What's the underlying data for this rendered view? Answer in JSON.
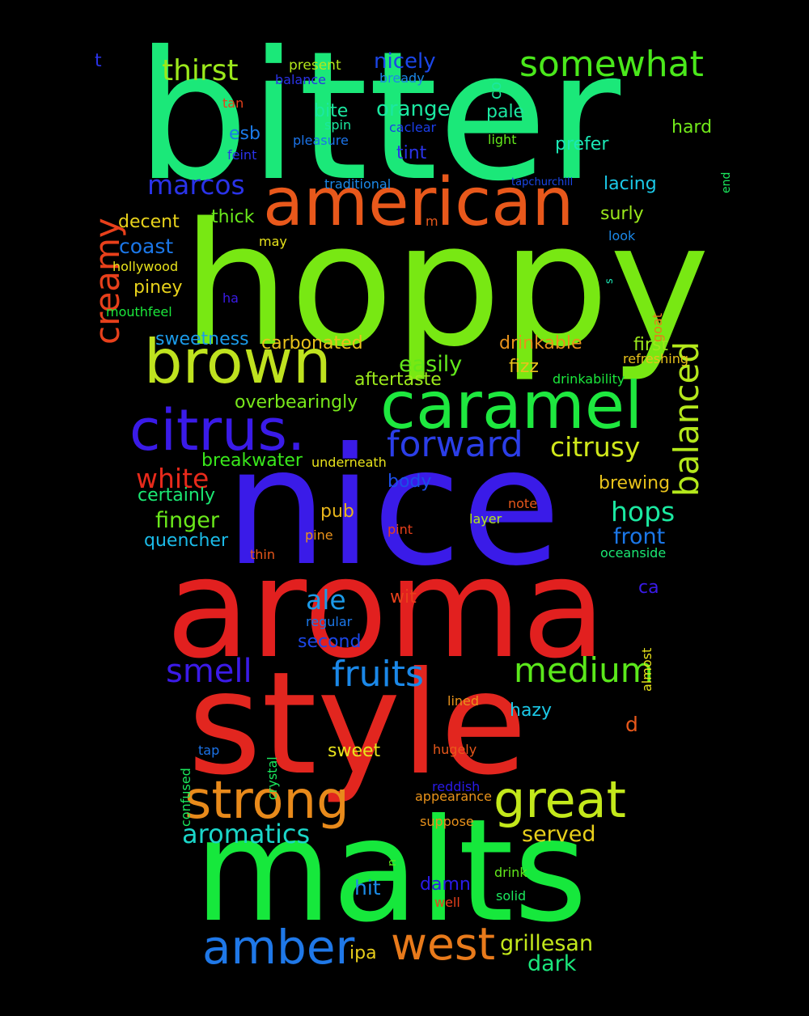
{
  "words": [
    {
      "text": "bitter",
      "color": "#1be879"
    },
    {
      "text": "hoppy",
      "color": "#78e813"
    },
    {
      "text": "nice",
      "color": "#3a1be8"
    },
    {
      "text": "aroma",
      "color": "#e2201f"
    },
    {
      "text": "style",
      "color": "#e2261f"
    },
    {
      "text": "malts",
      "color": "#16e83c"
    },
    {
      "text": "american",
      "color": "#e8581b"
    },
    {
      "text": "brown",
      "color": "#bfe21f"
    },
    {
      "text": "caramel",
      "color": "#1ee83f"
    },
    {
      "text": "citrus.",
      "color": "#3a1be8"
    },
    {
      "text": "forward",
      "color": "#2b3ee8"
    },
    {
      "text": "strong",
      "color": "#e88a1b"
    },
    {
      "text": "great",
      "color": "#c3e81b"
    },
    {
      "text": "amber",
      "color": "#1f78e8"
    },
    {
      "text": "west",
      "color": "#e87a1b"
    },
    {
      "text": "creamy",
      "color": "#e8401b"
    },
    {
      "text": "balanced",
      "color": "#b4e81b"
    },
    {
      "text": "somewhat",
      "color": "#4ae81b"
    },
    {
      "text": "thirst",
      "color": "#9be81b"
    },
    {
      "text": "marcos",
      "color": "#2a33e8"
    },
    {
      "text": "smell",
      "color": "#3b1be8"
    },
    {
      "text": "fruits",
      "color": "#1b88e8"
    },
    {
      "text": "medium",
      "color": "#5be81b"
    },
    {
      "text": "aromatics",
      "color": "#1bd6c9"
    },
    {
      "text": "citrusy",
      "color": "#d0e81b"
    },
    {
      "text": "white",
      "color": "#e82a1b"
    },
    {
      "text": "hops",
      "color": "#1be8a1"
    },
    {
      "text": "ale",
      "color": "#1b9ae8"
    },
    {
      "text": "front",
      "color": "#1b77e8"
    },
    {
      "text": "finger",
      "color": "#6ae81b"
    },
    {
      "text": "served",
      "color": "#e8cf1b"
    },
    {
      "text": "grillesan",
      "color": "#c3e81b"
    },
    {
      "text": "dark",
      "color": "#1be87c"
    },
    {
      "text": "nicely",
      "color": "#1b46e8"
    },
    {
      "text": "orange",
      "color": "#1be8a1"
    },
    {
      "text": "drinkable",
      "color": "#e8921b"
    },
    {
      "text": "easily",
      "color": "#62e81b"
    },
    {
      "text": "carbonated",
      "color": "#e8c21b"
    },
    {
      "text": "aftertaste",
      "color": "#9be81b"
    },
    {
      "text": "overbearingly",
      "color": "#78e81b"
    },
    {
      "text": "sweetness",
      "color": "#1b9ae8"
    },
    {
      "text": "coast",
      "color": "#1b77e8"
    },
    {
      "text": "decent",
      "color": "#e8d21b"
    },
    {
      "text": "thick",
      "color": "#69e81b"
    },
    {
      "text": "piney",
      "color": "#e8d21b"
    },
    {
      "text": "certainly",
      "color": "#1be873"
    },
    {
      "text": "breakwater",
      "color": "#39e81b"
    },
    {
      "text": "quencher",
      "color": "#1bbbe8"
    },
    {
      "text": "brewing",
      "color": "#e8c21b"
    },
    {
      "text": "first",
      "color": "#9be81b"
    },
    {
      "text": "fizz",
      "color": "#e8c21b"
    },
    {
      "text": "body",
      "color": "#1b4ee8"
    },
    {
      "text": "pub",
      "color": "#e8b61b"
    },
    {
      "text": "second",
      "color": "#1b47e8"
    },
    {
      "text": "hit",
      "color": "#1b8ce8"
    },
    {
      "text": "damn",
      "color": "#2a1be8"
    },
    {
      "text": "ipa",
      "color": "#e8cd1b"
    },
    {
      "text": "sweet",
      "color": "#e8e31b"
    },
    {
      "text": "hazy",
      "color": "#1bc9e8"
    },
    {
      "text": "esb",
      "color": "#1b7ae8"
    },
    {
      "text": "tint",
      "color": "#2a33e8"
    },
    {
      "text": "pale",
      "color": "#1be8a1"
    },
    {
      "text": "prefer",
      "color": "#1be8b6"
    },
    {
      "text": "hard",
      "color": "#71e81b"
    },
    {
      "text": "lacing",
      "color": "#1bc9e8"
    },
    {
      "text": "surly",
      "color": "#9be81b"
    },
    {
      "text": "bite",
      "color": "#1be8a1"
    },
    {
      "text": "present",
      "color": "#b4e81b"
    },
    {
      "text": "balance",
      "color": "#2a33e8"
    },
    {
      "text": "bready",
      "color": "#1b88e8"
    },
    {
      "text": "spin",
      "color": "#1be89e"
    },
    {
      "text": "caclear",
      "color": "#1b3ee8"
    },
    {
      "text": "pleasure",
      "color": "#1b73e8"
    },
    {
      "text": "light",
      "color": "#62e81b"
    },
    {
      "text": "feint",
      "color": "#2a33e8"
    },
    {
      "text": "traditional",
      "color": "#1b88e8"
    },
    {
      "text": "tapchurchill",
      "color": "#1b47e8"
    },
    {
      "text": "tan",
      "color": "#e8401b"
    },
    {
      "text": "t",
      "color": "#2a33e8"
    },
    {
      "text": "co",
      "color": "#1be89e"
    },
    {
      "text": "end",
      "color": "#1be85d"
    },
    {
      "text": "m",
      "color": "#e8581b"
    },
    {
      "text": "may",
      "color": "#e8e31b"
    },
    {
      "text": "look",
      "color": "#1b88e8"
    },
    {
      "text": "hollywood",
      "color": "#e8e31b"
    },
    {
      "text": "mouthfeel",
      "color": "#1be83c"
    },
    {
      "text": "ha",
      "color": "#3a1be8"
    },
    {
      "text": "s",
      "color": "#1be8b6"
    },
    {
      "text": "goat",
      "color": "#e87a1b"
    },
    {
      "text": "refreshing",
      "color": "#e8c21b"
    },
    {
      "text": "drinkability",
      "color": "#1be83c"
    },
    {
      "text": "underneath",
      "color": "#e8e31b"
    },
    {
      "text": "note",
      "color": "#e8581b"
    },
    {
      "text": "layer",
      "color": "#b4e81b"
    },
    {
      "text": "pint",
      "color": "#e8401b"
    },
    {
      "text": "pine",
      "color": "#e8921b"
    },
    {
      "text": "thin",
      "color": "#e8581b"
    },
    {
      "text": "oceanside",
      "color": "#1be873"
    },
    {
      "text": "ca",
      "color": "#3a1be8"
    },
    {
      "text": "almost",
      "color": "#e8e31b"
    },
    {
      "text": "wit",
      "color": "#e8401b"
    },
    {
      "text": "regular",
      "color": "#1b77e8"
    },
    {
      "text": "lined",
      "color": "#e8921b"
    },
    {
      "text": "d",
      "color": "#e8581b"
    },
    {
      "text": "confused",
      "color": "#1be85d"
    },
    {
      "text": "crystal",
      "color": "#1be85d"
    },
    {
      "text": "tap",
      "color": "#1b73e8"
    },
    {
      "text": "hugely",
      "color": "#e8581b"
    },
    {
      "text": "reddish",
      "color": "#2a1be8"
    },
    {
      "text": "appearance",
      "color": "#e8921b"
    },
    {
      "text": "suppose",
      "color": "#e8921b"
    },
    {
      "text": "n",
      "color": "#62e81b"
    },
    {
      "text": "drink",
      "color": "#62e81b"
    },
    {
      "text": "solid",
      "color": "#1be85d"
    },
    {
      "text": "well",
      "color": "#e8401b"
    }
  ]
}
